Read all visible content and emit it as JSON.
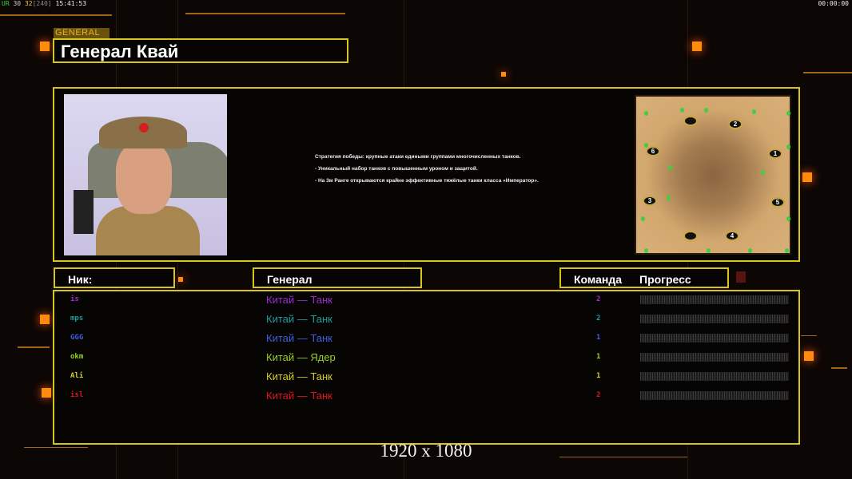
{
  "hud": {
    "fps_label": "UR",
    "fps1": "30",
    "fps2": "32",
    "bracket": "[240]",
    "time": "15:41:53",
    "timer": "00:00:00"
  },
  "header": {
    "tag": "GENERAL",
    "title": "Генерал Квай"
  },
  "description": [
    "Стратегия победы: крупные атаки едиными группами многочисленных танков.",
    "- Уникальный набор танков с повышенным уроном и защитой.",
    "- На 3м Ранге открываются крайне эффективные тяжёлые танки класса «Император»."
  ],
  "map": {
    "spawns": [
      "1",
      "2",
      "3",
      "4",
      "5",
      "6"
    ]
  },
  "columns": {
    "nick": "Ник:",
    "general": "Генерал",
    "team": "Команда",
    "progress": "Прогресс"
  },
  "players": [
    {
      "nick": "is",
      "general": "Китай — Танк",
      "team": "2",
      "color": "#9a2cd0",
      "progress": 0
    },
    {
      "nick": "mps",
      "general": "Китай — Танк",
      "team": "2",
      "color": "#1e9c9a",
      "progress": 0
    },
    {
      "nick": "GGG",
      "general": "Китай — Танк",
      "team": "1",
      "color": "#3f5fe0",
      "progress": 0
    },
    {
      "nick": "okm",
      "general": "Китай — Ядер",
      "team": "1",
      "color": "#94d21c",
      "progress": 0
    },
    {
      "nick": "Ali",
      "general": "Китай — Танк",
      "team": "1",
      "color": "#d6cf1e",
      "progress": 0
    },
    {
      "nick": "isl",
      "general": "Китай — Танк",
      "team": "2",
      "color": "#e0161a",
      "progress": 0
    }
  ],
  "resolution": "1920 x 1080"
}
